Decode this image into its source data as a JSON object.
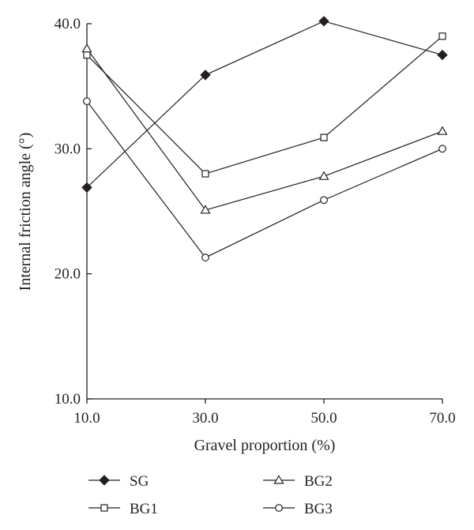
{
  "chart_data": {
    "type": "line",
    "xlabel": "Gravel proportion (%)",
    "ylabel": "Internal friction angle (°)",
    "x": [
      10,
      30,
      50,
      70
    ],
    "x_tick_labels": [
      "10.0",
      "30.0",
      "50.0",
      "70.0"
    ],
    "y_tick_labels": [
      "10.0",
      "20.0",
      "30.0",
      "40.0"
    ],
    "xlim": [
      10,
      70
    ],
    "ylim": [
      10,
      40
    ],
    "grid": false,
    "legend_position": "bottom",
    "series": [
      {
        "name": "SG",
        "marker": "filled-diamond",
        "values": [
          26.9,
          35.9,
          40.2,
          37.5
        ]
      },
      {
        "name": "BG1",
        "marker": "open-square",
        "values": [
          37.5,
          28.0,
          30.9,
          39.0
        ]
      },
      {
        "name": "BG2",
        "marker": "open-triangle",
        "values": [
          38.0,
          25.1,
          27.8,
          31.4
        ]
      },
      {
        "name": "BG3",
        "marker": "open-circle",
        "values": [
          33.8,
          21.3,
          25.9,
          30.0
        ]
      }
    ]
  }
}
